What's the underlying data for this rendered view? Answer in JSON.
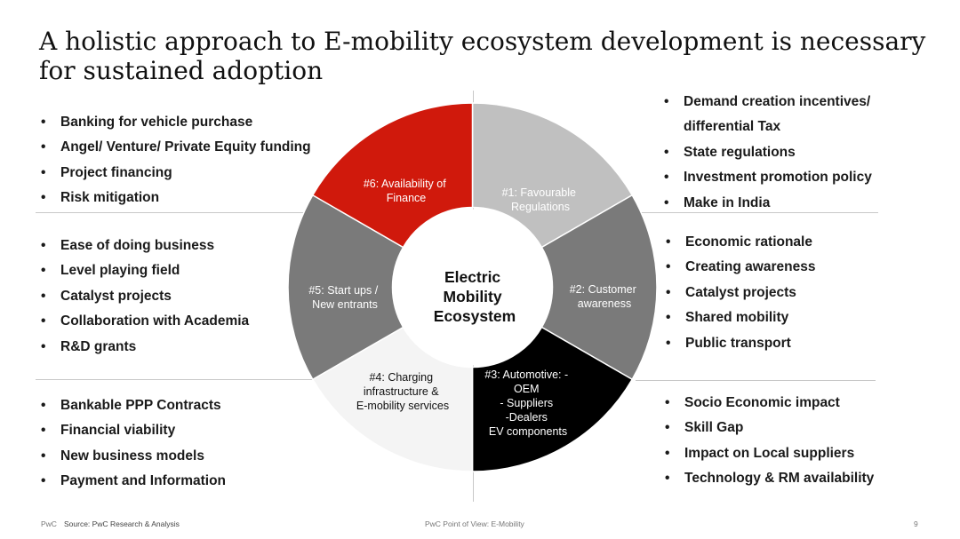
{
  "title": {
    "line1": "A holistic approach to E-mobility ecosystem development is necessary",
    "line2": "for sustained adoption"
  },
  "center": {
    "line1": "Electric",
    "line2": "Mobility",
    "line3": "Ecosystem"
  },
  "segments": {
    "s1": {
      "lines": [
        "#1: Favourable",
        "Regulations"
      ],
      "color": "#c0c0c0",
      "text_color": "#ffffff"
    },
    "s2": {
      "lines": [
        "#2: Customer",
        "awareness"
      ],
      "color": "#7a7a7a",
      "text_color": "#ffffff"
    },
    "s3": {
      "lines": [
        "#3: Automotive: -",
        "OEM",
        "- Suppliers",
        "-Dealers",
        "EV components"
      ],
      "color": "#000000",
      "text_color": "#ffffff"
    },
    "s4": {
      "lines": [
        "#4: Charging",
        "infrastructure &",
        "E-mobility  services"
      ],
      "color": "#f4f4f4",
      "text_color": "#111111"
    },
    "s5": {
      "lines": [
        "#5: Start ups /",
        "New entrants"
      ],
      "color": "#7a7a7a",
      "text_color": "#ffffff"
    },
    "s6": {
      "lines": [
        "#6: Availability  of",
        "Finance"
      ],
      "color": "#d0190c",
      "text_color": "#ffffff"
    }
  },
  "left_top": [
    "Banking for vehicle purchase",
    "Angel/ Venture/ Private Equity funding",
    "Project financing",
    "Risk mitigation"
  ],
  "left_mid": [
    "Ease of doing business",
    "Level playing field",
    "Catalyst projects",
    "Collaboration with Academia",
    "R&D grants"
  ],
  "left_bot": [
    "Bankable PPP Contracts",
    "Financial viability",
    "New business models",
    "Payment and Information"
  ],
  "right_top": {
    "item1a": "Demand creation incentives/",
    "item1b": "differential Tax",
    "item2": "State regulations",
    "item3": "Investment promotion policy",
    "item4": "Make in India"
  },
  "right_mid": [
    "Economic rationale",
    "Creating awareness",
    "Catalyst projects",
    "Shared mobility",
    "Public transport"
  ],
  "right_bot": [
    "Socio Economic impact",
    "Skill Gap",
    "Impact on Local suppliers",
    "Technology  & RM availability"
  ],
  "footer": {
    "brand": "PwC",
    "source": "Source: PwC Research & Analysis",
    "center": "PwC Point of View: E-Mobility",
    "page": "9"
  }
}
